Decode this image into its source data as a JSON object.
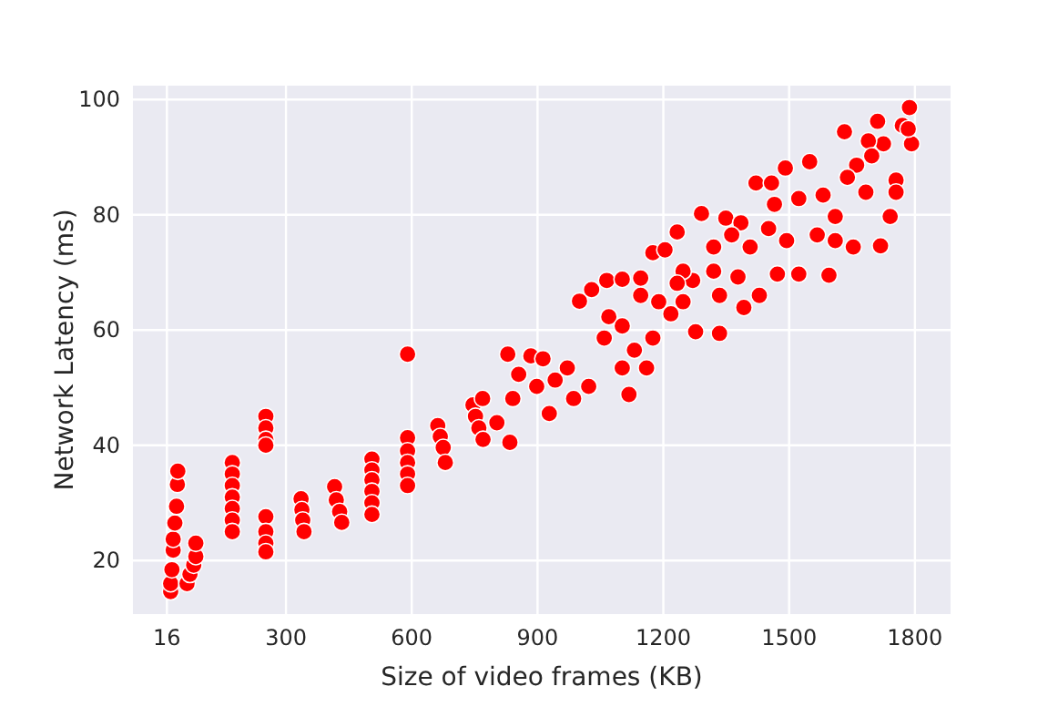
{
  "chart_data": {
    "type": "scatter",
    "xlabel": "Size of video frames (KB)",
    "ylabel": "Network Latency (ms)",
    "xlim": [
      -65,
      1885
    ],
    "ylim": [
      10.7,
      102.4
    ],
    "xticks": [
      16,
      300,
      600,
      900,
      1200,
      1500,
      1800
    ],
    "yticks": [
      20,
      40,
      60,
      80,
      100
    ],
    "grid": true,
    "marker": "circle",
    "series": [
      {
        "color": "#ff0000",
        "x": [
          25,
          25,
          28,
          31,
          31,
          35,
          39,
          41,
          42,
          64,
          71,
          80,
          85,
          85,
          172,
          172,
          172,
          172,
          172,
          172,
          172,
          252,
          252,
          252,
          252,
          252,
          252,
          252,
          252,
          336,
          338,
          340,
          343,
          416,
          420,
          428,
          433,
          505,
          505,
          505,
          505,
          505,
          505,
          590,
          590,
          590,
          590,
          590,
          590,
          662,
          668,
          675,
          680,
          746,
          752,
          760,
          770,
          829,
          803,
          834,
          884,
          913,
          928,
          986,
          1022,
          1000,
          1029,
          1065,
          1102,
          1070,
          1118,
          1102,
          1160,
          1146,
          1175,
          1204,
          1233,
          1291,
          1334,
          1349,
          1270,
          1277,
          1392,
          1429,
          1385,
          1421,
          1458,
          1491,
          1472,
          1523,
          1549,
          1595,
          1632,
          1661,
          1653,
          1718,
          1711,
          1787,
          1792,
          1770,
          1741,
          1683,
          1610,
          1567,
          1494,
          1407,
          1320,
          1247,
          1247,
          1189,
          1175,
          1102,
          1059,
          971,
          942,
          898,
          855,
          841,
          769,
          1725,
          1689,
          1639,
          1581,
          1523,
          1465,
          1451,
          1363,
          1320,
          1233,
          1334,
          1378,
          1610,
          1697,
          1755,
          1755,
          1784,
          1131,
          1218,
          1146
        ],
        "values": [
          14.6,
          16,
          18.4,
          21.8,
          23.7,
          26.5,
          29.4,
          33.2,
          35.5,
          16,
          17.6,
          19.2,
          20.7,
          23,
          37,
          35,
          33,
          31,
          29,
          27,
          25,
          45,
          43,
          41,
          40,
          27.6,
          25,
          23,
          21.5,
          30.7,
          28.8,
          27,
          25,
          32.8,
          30.5,
          28.5,
          26.6,
          37.6,
          35.7,
          34,
          32,
          30,
          28,
          41.3,
          39,
          37,
          35,
          33,
          55.8,
          43.4,
          41.5,
          39.6,
          37,
          47,
          45,
          43,
          41,
          55.8,
          43.9,
          40.5,
          55.5,
          55,
          45.5,
          48.1,
          50.2,
          65,
          67,
          68.6,
          68.8,
          62.3,
          48.8,
          53.4,
          53.4,
          69,
          73.4,
          73.9,
          77,
          80.2,
          59.4,
          79.4,
          68.6,
          59.7,
          63.9,
          66,
          78.6,
          85.5,
          85.5,
          88.1,
          69.7,
          69.7,
          89.2,
          69.5,
          94.4,
          88.6,
          74.4,
          74.6,
          96.2,
          98.6,
          92.3,
          95.5,
          79.7,
          83.9,
          79.7,
          76.5,
          75.5,
          74.4,
          74.4,
          70.2,
          64.9,
          64.9,
          58.6,
          60.7,
          58.6,
          53.4,
          51.3,
          50.2,
          52.3,
          48.1,
          48.1,
          92.3,
          92.8,
          86.5,
          83.4,
          82.8,
          81.8,
          77.6,
          76.5,
          70.2,
          68.1,
          66,
          69.2,
          75.5,
          90.2,
          86,
          83.9,
          94.9,
          56.5,
          62.8,
          66
        ]
      }
    ]
  }
}
